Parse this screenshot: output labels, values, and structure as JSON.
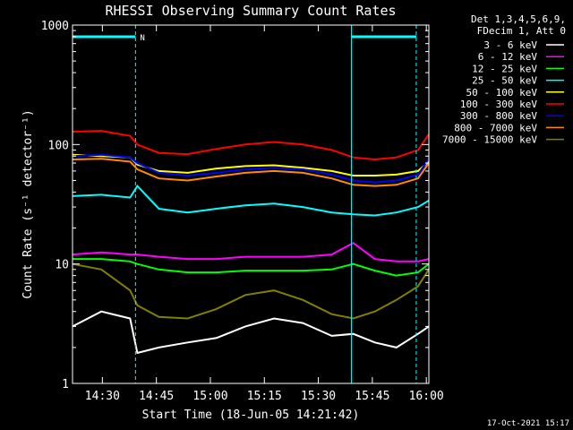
{
  "chart_data": {
    "type": "line",
    "title": "RHESSI Observing Summary Count Rates",
    "xlabel": "Start Time (18-Jun-05 14:21:42)",
    "ylabel": "Count Rate (s⁻¹ detector⁻¹)",
    "y_scale": "log",
    "ylim": [
      1,
      1000
    ],
    "xlim_minutes_after_14_21_42": [
      0,
      99
    ],
    "x_tick_labels": [
      "14:30",
      "14:45",
      "15:00",
      "15:15",
      "15:30",
      "15:45",
      "16:00"
    ],
    "y_tick_labels": [
      "1",
      "10",
      "100",
      "1000"
    ],
    "legend_header": [
      "Det 1,3,4,5,6,9,",
      "FDecim 1, Att 0"
    ],
    "legend_placement": "right",
    "flag_label": "N",
    "timestamp": "17-Oct-2021 15:17",
    "x_minutes": [
      0,
      8,
      16,
      18,
      24,
      32,
      40,
      48,
      56,
      64,
      72,
      78,
      84,
      90,
      96,
      99
    ],
    "series": [
      {
        "name": "3 - 6 keV",
        "color": "#000000",
        "values": [
          3,
          4,
          3.5,
          1.8,
          2,
          2.2,
          2.4,
          3,
          3.5,
          3.2,
          2.5,
          2.6,
          2.2,
          2,
          2.6,
          3
        ]
      },
      {
        "name": "6 - 12 keV",
        "color": "#ff00ff",
        "values": [
          12,
          12.5,
          12,
          12,
          11.5,
          11,
          11,
          11.5,
          11.5,
          11.5,
          12,
          15,
          11,
          10.5,
          10.5,
          11
        ]
      },
      {
        "name": "12 - 25 keV",
        "color": "#00ff00",
        "values": [
          11,
          11,
          10.5,
          10,
          9,
          8.5,
          8.5,
          8.8,
          8.8,
          8.8,
          9,
          10,
          8.8,
          8,
          8.5,
          10
        ]
      },
      {
        "name": "25 - 50 keV",
        "color": "#00ffff",
        "values": [
          37,
          38,
          36,
          45,
          29,
          27,
          29,
          31,
          32,
          30,
          27,
          26,
          25.5,
          27,
          30,
          34
        ]
      },
      {
        "name": "50 - 100 keV",
        "color": "#ffff00",
        "values": [
          82,
          80,
          78,
          68,
          60,
          58,
          63,
          66,
          67,
          64,
          60,
          55,
          55,
          56,
          60,
          72
        ]
      },
      {
        "name": "100 - 300 keV",
        "color": "#ff0000",
        "values": [
          128,
          130,
          118,
          100,
          85,
          83,
          92,
          100,
          105,
          100,
          90,
          78,
          75,
          78,
          90,
          122
        ]
      },
      {
        "name": "300 - 800 keV",
        "color": "#0000ff",
        "values": [
          80,
          82,
          78,
          70,
          58,
          55,
          58,
          62,
          64,
          62,
          56,
          50,
          48,
          50,
          56,
          76
        ]
      },
      {
        "name": "800 - 7000 keV",
        "color": "#ff8c00",
        "values": [
          75,
          76,
          72,
          62,
          52,
          50,
          54,
          58,
          60,
          58,
          52,
          46,
          45,
          46,
          52,
          70
        ]
      },
      {
        "name": "7000 - 15000 keV",
        "color": "#808000",
        "values": [
          10,
          9,
          6,
          4.5,
          3.6,
          3.5,
          4.2,
          5.5,
          6,
          5,
          3.8,
          3.5,
          4,
          5,
          6.5,
          9
        ]
      }
    ],
    "flag_intervals_minutes": [
      [
        0,
        17.5
      ],
      [
        77.5,
        95.5
      ]
    ],
    "flag_vertical_lines_minutes": [
      17.5,
      77.5,
      95.5
    ],
    "grid": false
  }
}
